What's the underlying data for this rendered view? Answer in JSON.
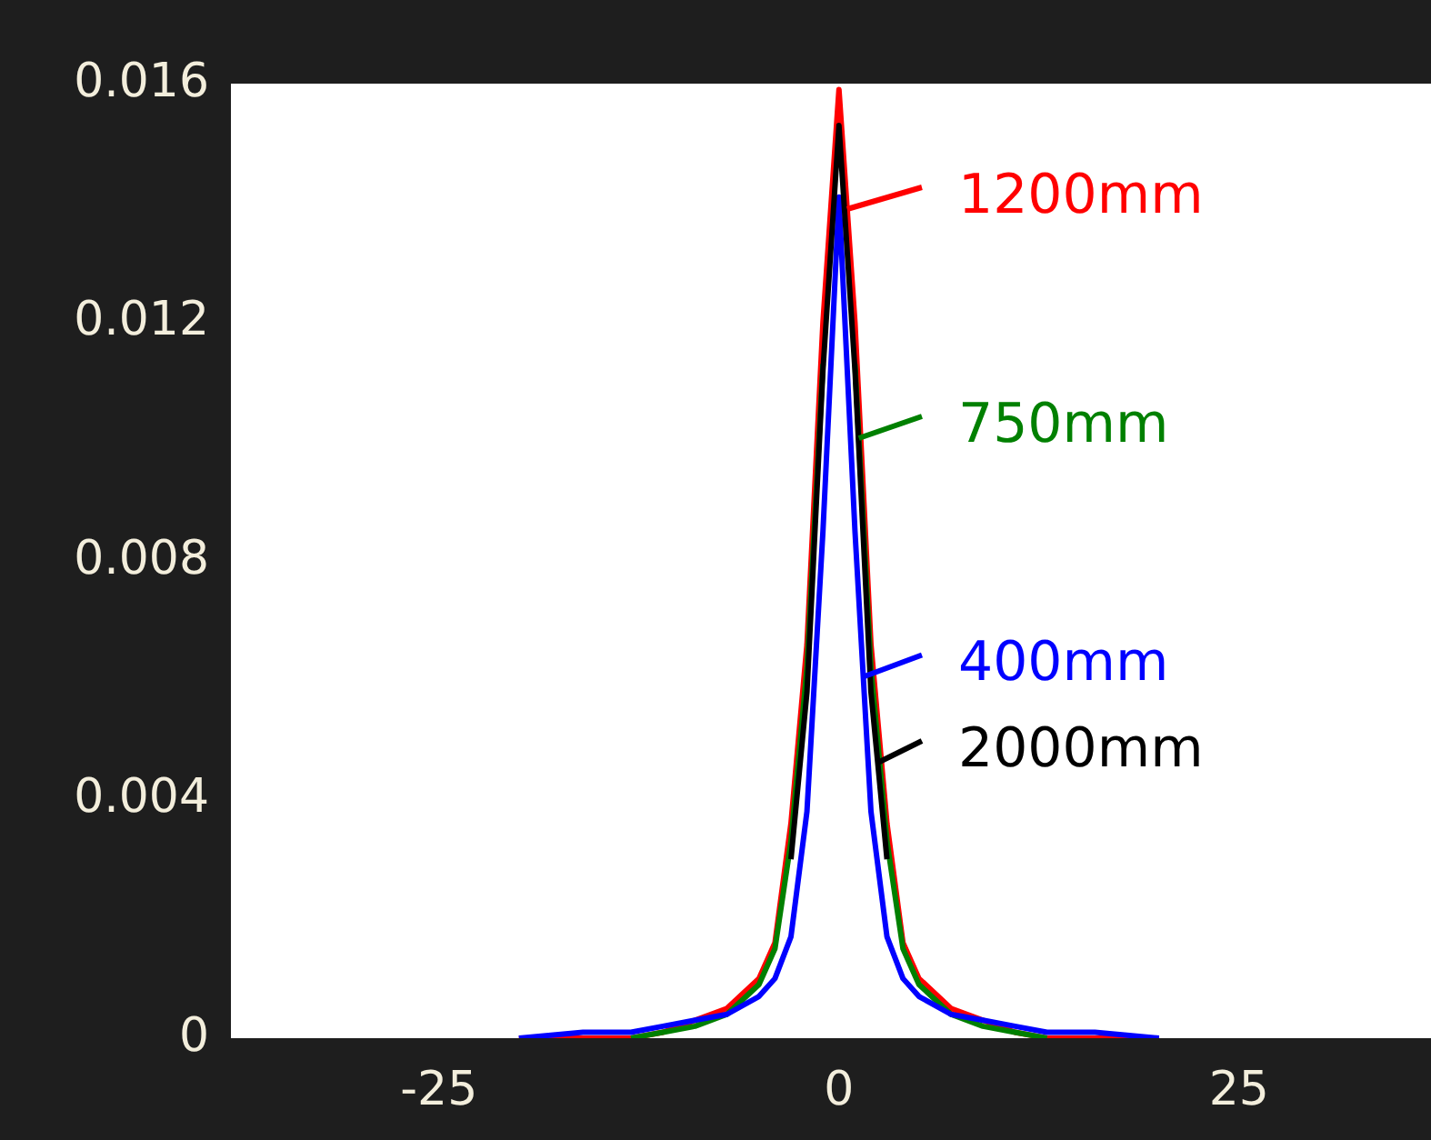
{
  "chart_data": {
    "type": "line",
    "x": [
      -20,
      -16,
      -13,
      -11,
      -9,
      -7,
      -5,
      -4,
      -3,
      -2,
      -1,
      0,
      1,
      2,
      3,
      4,
      5,
      7,
      9,
      11,
      13,
      16,
      20
    ],
    "xlim": [
      -38,
      37
    ],
    "xticks": [
      -25,
      0,
      25
    ],
    "ylim": [
      0,
      0.016
    ],
    "yticks": [
      0,
      0.004,
      0.008,
      0.012,
      0.016
    ],
    "grid": false,
    "legend": "right",
    "marker": "none",
    "line_style": "solid",
    "series": [
      {
        "name": "2000mm",
        "color": "#000000",
        "values": [
          null,
          null,
          null,
          null,
          null,
          null,
          null,
          null,
          0.003,
          0.0058,
          0.0112,
          0.0153,
          0.0112,
          0.0058,
          0.003,
          null,
          null,
          null,
          null,
          null,
          null,
          null,
          null
        ]
      },
      {
        "name": "400mm",
        "color": "#0000ff",
        "values": [
          0,
          0.0001,
          0.0001,
          0.0002,
          0.0003,
          0.0004,
          0.0007,
          0.001,
          0.0017,
          0.0038,
          0.0085,
          0.0141,
          0.0085,
          0.0038,
          0.0017,
          0.001,
          0.0007,
          0.0004,
          0.0003,
          0.0002,
          0.0001,
          0.0001,
          0
        ]
      },
      {
        "name": "750mm",
        "color": "#008000",
        "values": [
          null,
          null,
          0,
          0.0001,
          0.0002,
          0.0004,
          0.0009,
          0.0015,
          0.0033,
          0.0062,
          0.0113,
          null,
          0.0113,
          0.0062,
          0.0033,
          0.0015,
          0.0009,
          0.0004,
          0.0002,
          0.0001,
          0,
          null,
          null
        ]
      },
      {
        "name": "1200mm",
        "color": "#ff0000",
        "values": [
          0,
          0,
          0,
          0.0001,
          0.0003,
          0.0005,
          0.001,
          0.0016,
          0.0036,
          0.0066,
          0.012,
          0.0159,
          0.012,
          0.0066,
          0.0036,
          0.0016,
          0.001,
          0.0005,
          0.0003,
          0.0001,
          0,
          0,
          0
        ]
      }
    ]
  }
}
